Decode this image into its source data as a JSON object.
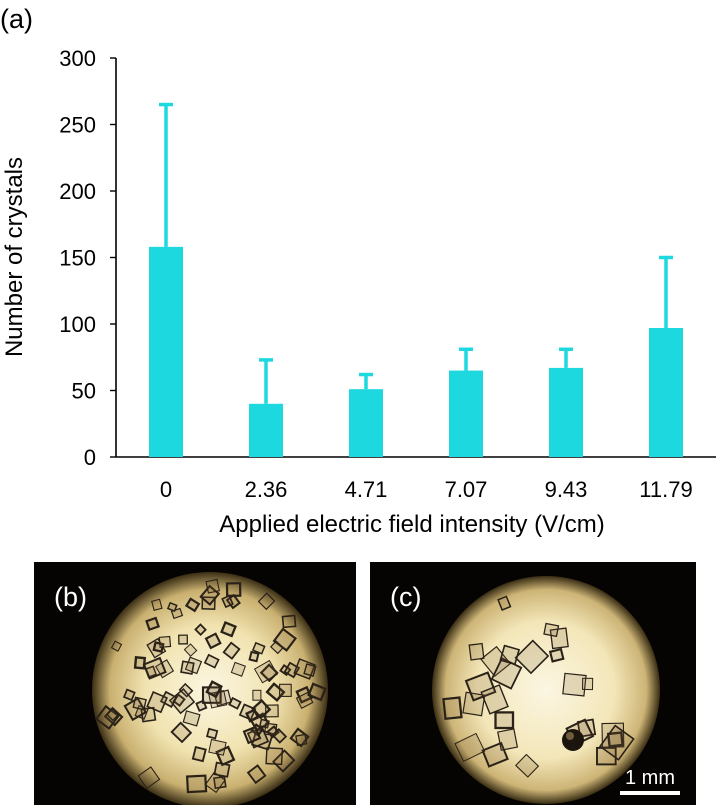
{
  "chart_data": {
    "type": "bar",
    "panel_label": "(a)",
    "categories": [
      "0",
      "2.36",
      "4.71",
      "7.07",
      "9.43",
      "11.79"
    ],
    "values": [
      158,
      40,
      51,
      65,
      67,
      97
    ],
    "errors": [
      107,
      33,
      11,
      16,
      14,
      53
    ],
    "xlabel": "Applied electric field intensity (V/cm)",
    "ylabel": "Number of crystals",
    "ylim": [
      0,
      300
    ],
    "yticks": [
      0,
      50,
      100,
      150,
      200,
      250,
      300
    ],
    "bar_color": "#1ed8e0",
    "grid": false
  },
  "panels": {
    "b": {
      "label": "(b)"
    },
    "c": {
      "label": "(c)",
      "scale_text": "1 mm"
    }
  },
  "colors": {
    "illumination": "#f7efcf",
    "background": "#050403",
    "crystal_edge": "#2a2218"
  }
}
